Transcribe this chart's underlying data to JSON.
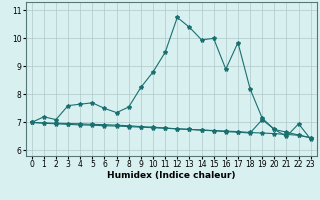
{
  "xlabel": "Humidex (Indice chaleur)",
  "ylabel": "",
  "xlim": [
    -0.5,
    23.5
  ],
  "ylim": [
    5.8,
    11.3
  ],
  "yticks": [
    6,
    7,
    8,
    9,
    10,
    11
  ],
  "xticks": [
    0,
    1,
    2,
    3,
    4,
    5,
    6,
    7,
    8,
    9,
    10,
    11,
    12,
    13,
    14,
    15,
    16,
    17,
    18,
    19,
    20,
    21,
    22,
    23
  ],
  "background_color": "#d8f0f0",
  "grid_color": "#b0c8c8",
  "line_color": "#1a7070",
  "line1_y": [
    7.0,
    7.2,
    7.1,
    7.6,
    7.65,
    7.7,
    7.5,
    7.35,
    7.55,
    8.25,
    8.8,
    9.5,
    10.75,
    10.4,
    9.95,
    10.0,
    8.9,
    9.85,
    8.2,
    7.15,
    6.75,
    6.5,
    6.95,
    6.4
  ],
  "line2_y": [
    7.0,
    6.98,
    6.97,
    6.96,
    6.95,
    6.93,
    6.92,
    6.9,
    6.88,
    6.85,
    6.83,
    6.8,
    6.77,
    6.75,
    6.72,
    6.7,
    6.67,
    6.65,
    6.62,
    7.1,
    6.75,
    6.65,
    6.55,
    6.45
  ],
  "line3_y": [
    7.0,
    6.97,
    6.95,
    6.93,
    6.91,
    6.9,
    6.88,
    6.87,
    6.85,
    6.83,
    6.81,
    6.79,
    6.77,
    6.75,
    6.73,
    6.71,
    6.69,
    6.67,
    6.64,
    6.62,
    6.6,
    6.57,
    6.54,
    6.45
  ],
  "marker": "*",
  "markersize": 3,
  "linewidth": 0.8,
  "tick_fontsize": 5.5,
  "xlabel_fontsize": 6.5
}
